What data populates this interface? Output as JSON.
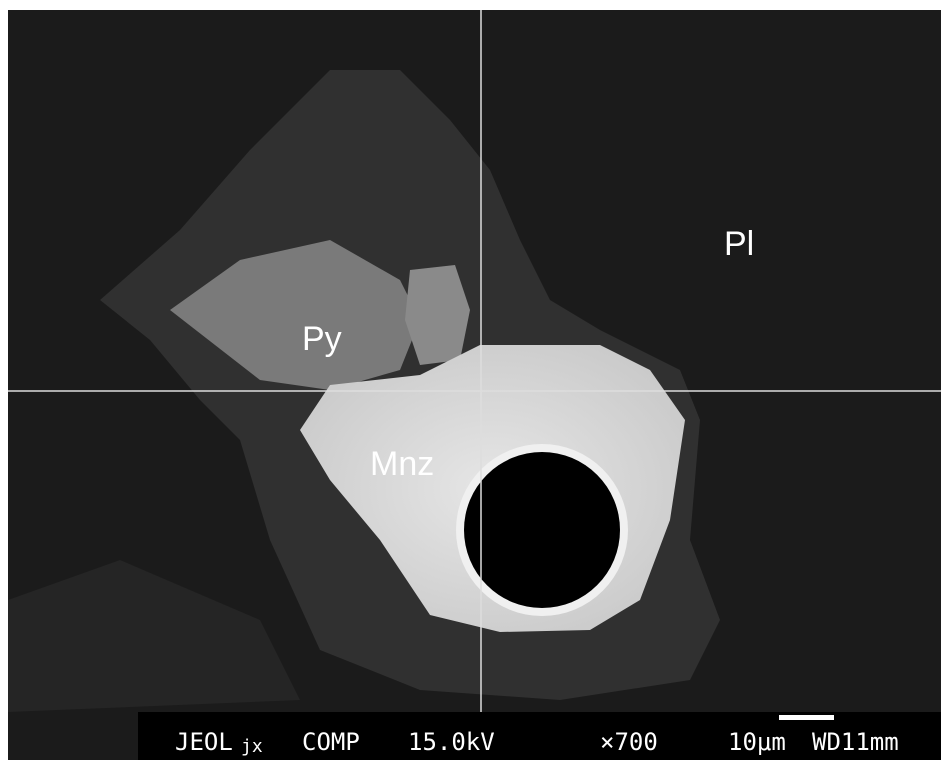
{
  "image": {
    "labels": {
      "pl": "Pl",
      "py": "Py",
      "mnz": "Mnz"
    }
  },
  "info_bar": {
    "instrument": "JEOL",
    "model": "jx",
    "mode": "COMP",
    "voltage": "15.0kV",
    "magnification": "×700",
    "scale": "10μm",
    "working_distance": "WD11mm"
  }
}
